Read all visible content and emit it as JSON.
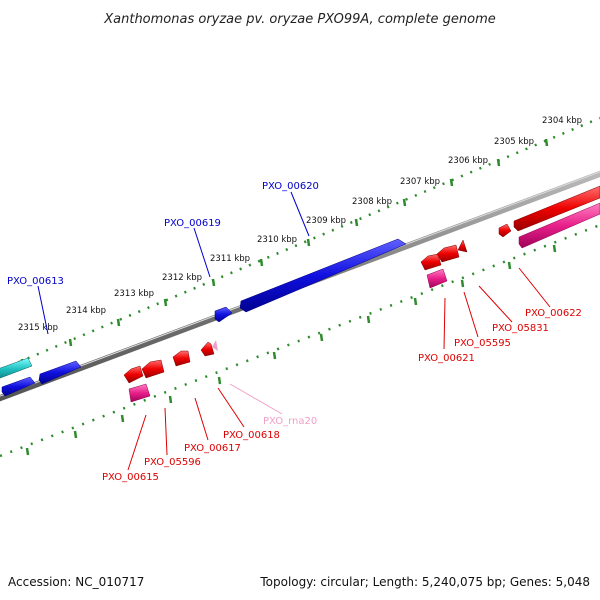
{
  "title": "Xanthomonas oryzae pv. oryzae PXO99A, complete genome",
  "accession": "Accession: NC_010717",
  "topology": "Topology: circular; Length: 5,240,075 bp; Genes: 5,048",
  "colors": {
    "backbone": "#777777",
    "tick": "#2e8b2e",
    "blue": "#1010e0",
    "red": "#ee0000",
    "pink": "#e8208a",
    "cyan": "#20c0c0",
    "lightpink": "#f0a0c8"
  },
  "scale_ticks": [
    "2304 kbp",
    "2305 kbp",
    "2306 kbp",
    "2307 kbp",
    "2308 kbp",
    "2309 kbp",
    "2310 kbp",
    "2311 kbp",
    "2312 kbp",
    "2313 kbp",
    "2314 kbp",
    "2315 kbp"
  ],
  "gene_labels": {
    "pxo_00613": "PXO_00613",
    "pxo_00619": "PXO_00619",
    "pxo_00620": "PXO_00620",
    "pxo_00615": "PXO_00615",
    "pxo_05596": "PXO_05596",
    "pxo_00617": "PXO_00617",
    "pxo_00618": "PXO_00618",
    "pxo_rna20": "PXO_rna20",
    "pxo_00621": "PXO_00621",
    "pxo_05595": "PXO_05595",
    "pxo_05831": "PXO_05831",
    "pxo_00622": "PXO_00622"
  }
}
